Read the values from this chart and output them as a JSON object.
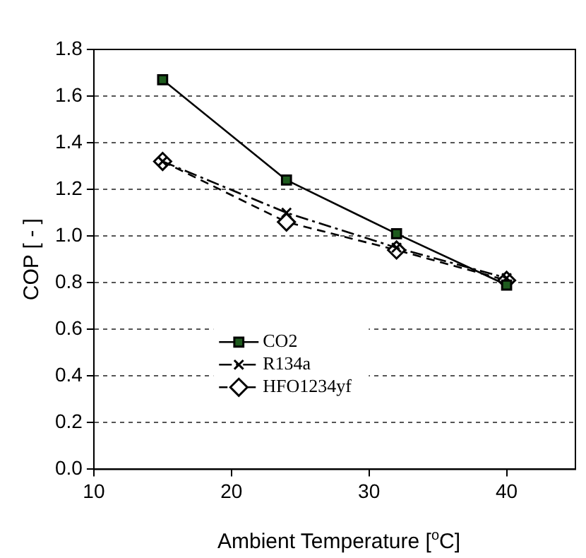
{
  "chart_data": {
    "type": "line",
    "xlabel": "Ambient Temperature  [$^{o}$C]",
    "ylabel": "COP [ - ]",
    "x": [
      15,
      24,
      32,
      40
    ],
    "series": [
      {
        "name": "CO2",
        "color": "#000000",
        "values": [
          1.67,
          1.24,
          1.01,
          0.79
        ],
        "marker": "square",
        "line_style": "solid"
      },
      {
        "name": "R134a",
        "color": "#000000",
        "values": [
          1.32,
          1.1,
          0.95,
          0.82
        ],
        "marker": "cross",
        "line_style": "dashdot"
      },
      {
        "name": "HFO1234yf",
        "color": "#000000",
        "values": [
          1.32,
          1.06,
          0.94,
          0.81
        ],
        "marker": "diamond",
        "line_style": "dashed"
      }
    ],
    "xlim": [
      10,
      45
    ],
    "xticks": [
      10,
      20,
      30,
      40
    ],
    "ylim": [
      0,
      1.8
    ],
    "yticks": [
      {
        "value": 0,
        "label": "0.0"
      },
      {
        "value": 0.2,
        "label": "0.2"
      },
      {
        "value": 0.4,
        "label": "0.4"
      },
      {
        "value": 0.6,
        "label": "0.6"
      },
      {
        "value": 0.8,
        "label": "0.8"
      },
      {
        "value": 1,
        "label": "1.0"
      },
      {
        "value": 1.2,
        "label": "1.2"
      },
      {
        "value": 1.4,
        "label": "1.4"
      },
      {
        "value": 1.6,
        "label": "1.6"
      },
      {
        "value": 1.8,
        "label": "1.8"
      }
    ],
    "grid": "y",
    "legend": "bottom left"
  }
}
